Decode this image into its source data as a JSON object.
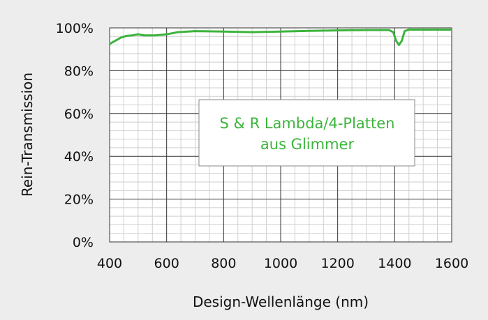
{
  "chart_data": {
    "type": "line",
    "xlabel": "Design-Wellenlänge (nm)",
    "ylabel": "Rein-Transmission",
    "annotation": [
      "S & R Lambda/4-Platten",
      "aus Glimmer"
    ],
    "x": [
      400,
      420,
      440,
      460,
      480,
      500,
      520,
      560,
      600,
      640,
      700,
      800,
      900,
      1000,
      1100,
      1200,
      1300,
      1380,
      1395,
      1405,
      1415,
      1425,
      1435,
      1450,
      1600
    ],
    "series": [
      {
        "name": "Rein-Transmission",
        "color": "#3cb43c",
        "values": [
          92.5,
          94,
          95.5,
          96.3,
          96.5,
          97,
          96.5,
          96.5,
          97,
          98,
          98.5,
          98.3,
          98,
          98.3,
          98.6,
          98.8,
          99,
          99,
          98,
          94,
          92,
          94,
          98.5,
          99.2,
          99.2
        ]
      }
    ],
    "xlim": [
      400,
      1600
    ],
    "xticks": [
      400,
      600,
      800,
      1000,
      1200,
      1400,
      1600
    ],
    "ylim": [
      0,
      100
    ],
    "yticks": [
      {
        "value": 0,
        "label": "0%"
      },
      {
        "value": 20,
        "label": "20%"
      },
      {
        "value": 40,
        "label": "40%"
      },
      {
        "value": 60,
        "label": "60%"
      },
      {
        "value": 80,
        "label": "80%"
      },
      {
        "value": 100,
        "label": "100%"
      }
    ],
    "grid": true,
    "minor_grid": true
  }
}
